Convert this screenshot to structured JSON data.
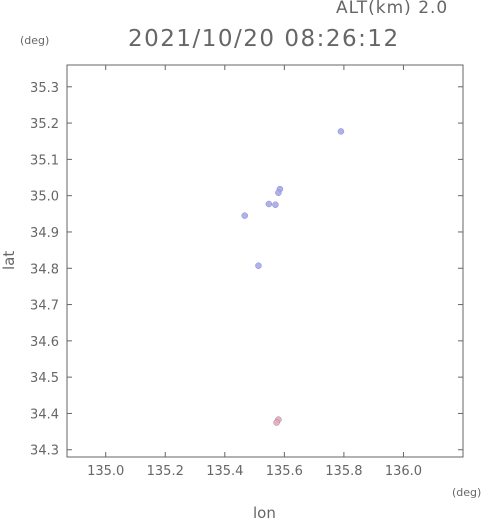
{
  "header": {
    "altitude_label": "ALT(km) 2.0",
    "timestamp": "2021/10/20 08:26:12",
    "y_unit": "(deg)",
    "x_unit": "(deg)"
  },
  "chart_data": {
    "type": "scatter",
    "title": "2021/10/20 08:26:12",
    "xlabel": "lon",
    "ylabel": "lat",
    "xlim": [
      134.87,
      136.2
    ],
    "ylim": [
      34.28,
      35.36
    ],
    "x_ticks": [
      "135.0",
      "135.2",
      "135.4",
      "135.6",
      "135.8",
      "136.0"
    ],
    "y_ticks": [
      "34.3",
      "34.4",
      "34.5",
      "34.6",
      "34.7",
      "34.8",
      "34.9",
      "35.0",
      "35.1",
      "35.2",
      "35.3"
    ],
    "grid": false,
    "series": [
      {
        "color": "#a8a8e8",
        "points": [
          {
            "x": 135.79,
            "y": 35.177
          },
          {
            "x": 135.585,
            "y": 35.018
          },
          {
            "x": 135.58,
            "y": 35.008
          },
          {
            "x": 135.548,
            "y": 34.977
          },
          {
            "x": 135.57,
            "y": 34.975
          },
          {
            "x": 135.467,
            "y": 34.945
          },
          {
            "x": 135.513,
            "y": 34.807
          }
        ]
      },
      {
        "color": "#f0a8a8",
        "points": [
          {
            "x": 135.58,
            "y": 34.383
          },
          {
            "x": 135.574,
            "y": 34.375
          }
        ]
      }
    ]
  }
}
